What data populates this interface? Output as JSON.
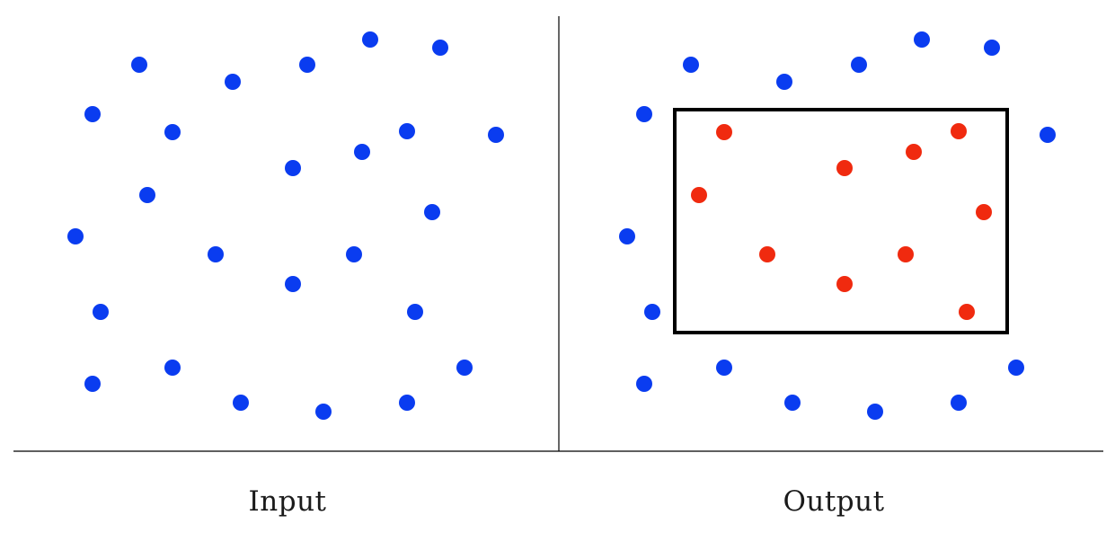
{
  "captions": {
    "input": "Input",
    "output": "Output"
  },
  "colors": {
    "outside_point": "#0a3cf0",
    "inside_point": "#f02a0f",
    "rectangle": "#000000",
    "divider": "#000000"
  },
  "points": [
    [
      155,
      72
    ],
    [
      259,
      91
    ],
    [
      342,
      72
    ],
    [
      412,
      44
    ],
    [
      490,
      53
    ],
    [
      103,
      127
    ],
    [
      192,
      147
    ],
    [
      326,
      187
    ],
    [
      403,
      169
    ],
    [
      453,
      146
    ],
    [
      552,
      150
    ],
    [
      164,
      217
    ],
    [
      481,
      236
    ],
    [
      84,
      263
    ],
    [
      240,
      283
    ],
    [
      394,
      283
    ],
    [
      326,
      316
    ],
    [
      112,
      347
    ],
    [
      462,
      347
    ],
    [
      103,
      427
    ],
    [
      192,
      409
    ],
    [
      268,
      448
    ],
    [
      360,
      458
    ],
    [
      453,
      448
    ],
    [
      517,
      409
    ]
  ],
  "output_selection": {
    "x_range": [
      137,
      507
    ],
    "y_range": [
      122,
      370
    ],
    "inside_color_name": "red",
    "outside_color_name": "blue"
  }
}
